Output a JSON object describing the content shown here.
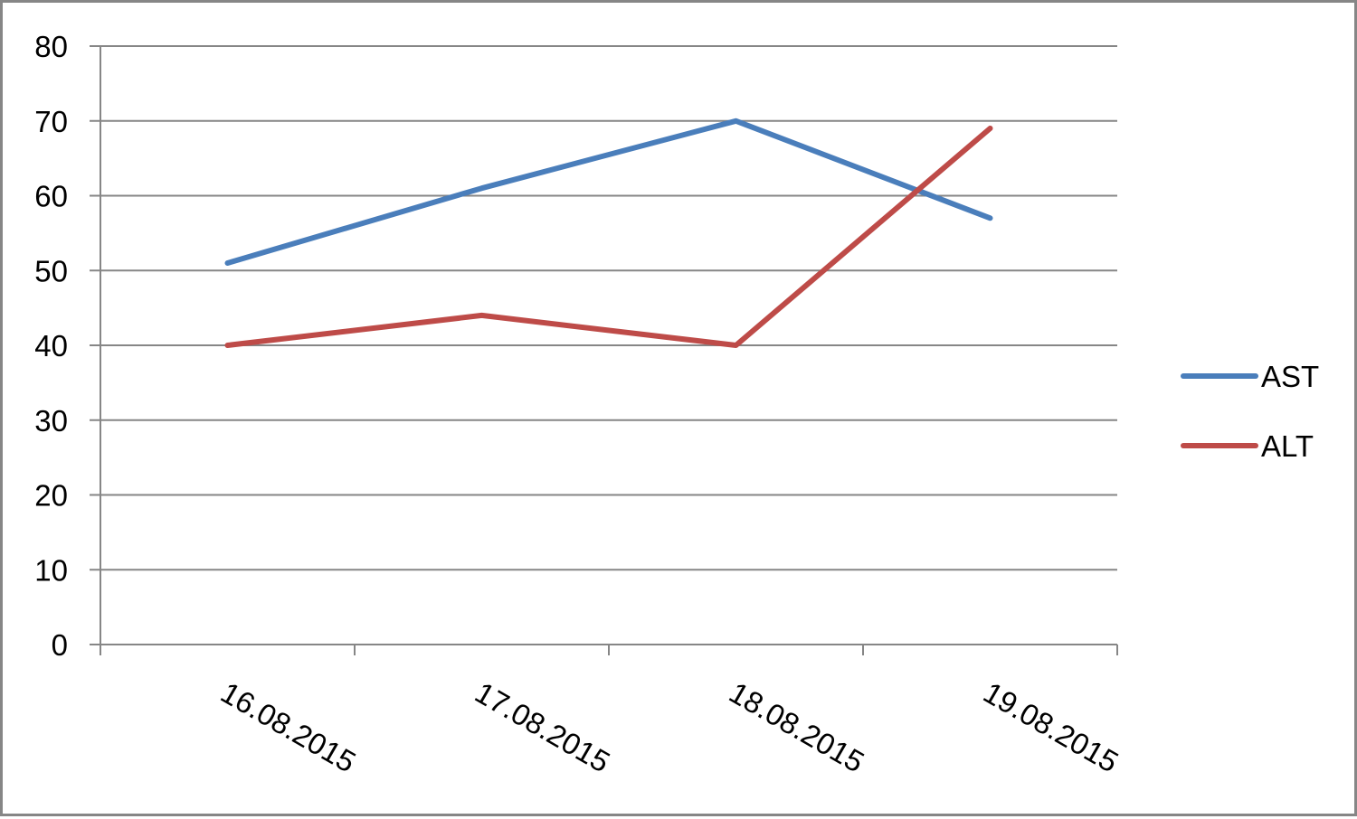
{
  "chart_data": {
    "type": "line",
    "categories": [
      "16.08.2015",
      "17.08.2015",
      "18.08.2015",
      "19.08.2015"
    ],
    "series": [
      {
        "name": "AST",
        "color": "#4a7ebb",
        "values": [
          51,
          61,
          70,
          57
        ]
      },
      {
        "name": "ALT",
        "color": "#be4b48",
        "values": [
          40,
          44,
          40,
          69
        ]
      }
    ],
    "ylim": [
      0,
      80
    ],
    "yticks": [
      0,
      10,
      20,
      30,
      40,
      50,
      60,
      70,
      80
    ],
    "grid": true,
    "legend_position": "right"
  }
}
